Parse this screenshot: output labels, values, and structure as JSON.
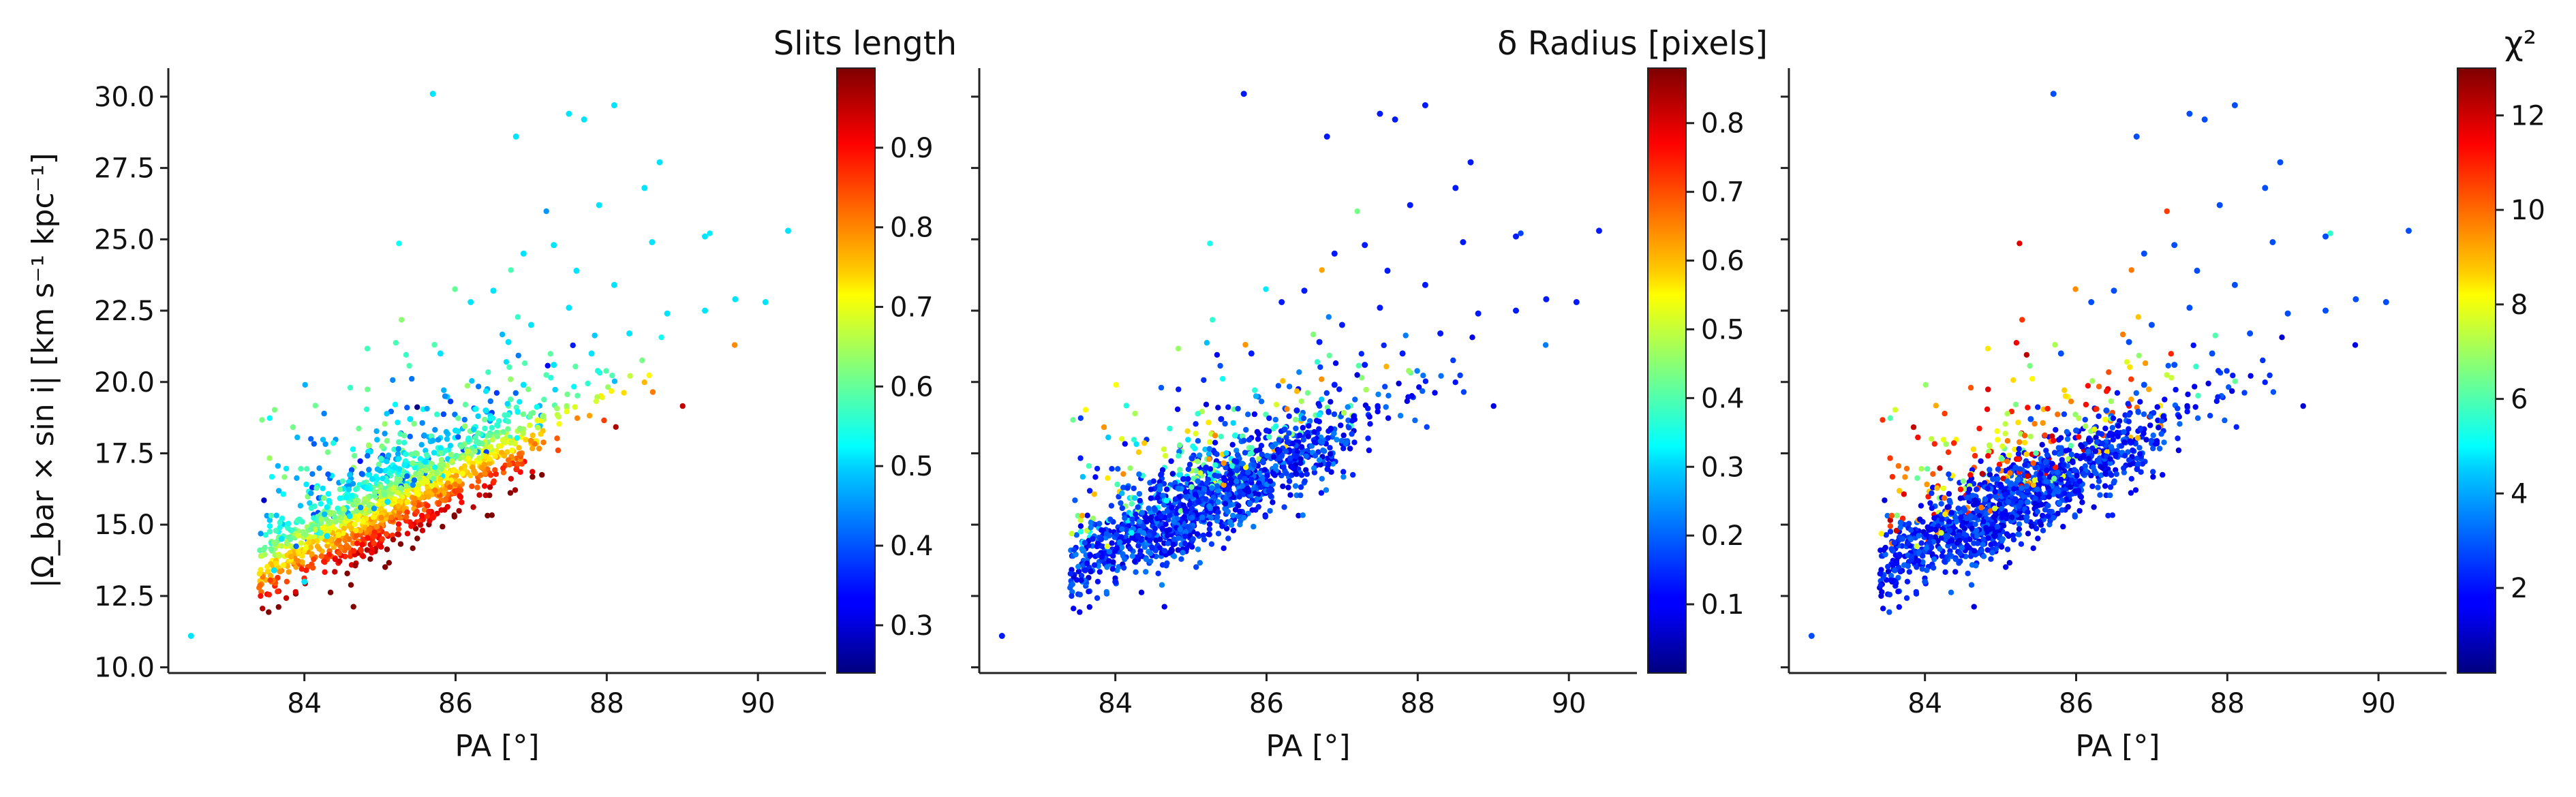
{
  "chart_data": [
    {
      "type": "scatter",
      "xlabel": "PA [°]",
      "ylabel": "|Ω_bar × sin i|   [km s⁻¹ kpc⁻¹]",
      "xlim": [
        82.2,
        90.9
      ],
      "ylim": [
        9.8,
        31.0
      ],
      "x_ticks": [
        "84",
        "86",
        "88",
        "90"
      ],
      "y_ticks": [
        "10.0",
        "12.5",
        "15.0",
        "17.5",
        "20.0",
        "22.5",
        "25.0",
        "27.5",
        "30.0"
      ],
      "colorbar": {
        "title": "Slits length",
        "range": [
          0.24,
          1.0
        ],
        "ticks": [
          "0.3",
          "0.4",
          "0.5",
          "0.6",
          "0.7",
          "0.8",
          "0.9"
        ],
        "colormap": "jet"
      },
      "color_trend": "color increases toward lower Ω at fixed PA (lower edge of the band ≈ 1.0, upper scatter ≈ 0.3–0.5)",
      "points": [
        [
          82.5,
          11.1
        ],
        [
          85.7,
          30.1
        ],
        [
          87.5,
          29.4
        ],
        [
          88.1,
          29.7
        ],
        [
          86.8,
          28.6
        ],
        [
          87.7,
          29.2
        ],
        [
          88.7,
          27.7
        ],
        [
          87.9,
          26.2
        ],
        [
          88.5,
          26.8
        ],
        [
          87.3,
          24.8
        ],
        [
          90.4,
          25.3
        ],
        [
          89.3,
          25.1
        ],
        [
          83.6,
          13.4
        ],
        [
          83.7,
          14.5
        ],
        [
          84.0,
          13.0
        ],
        [
          84.3,
          14.6
        ],
        [
          84.6,
          15.3
        ],
        [
          85.1,
          15.8
        ],
        [
          85.6,
          17.2
        ],
        [
          86.0,
          18.3
        ],
        [
          86.4,
          19.0
        ],
        [
          86.9,
          19.9
        ],
        [
          87.3,
          20.6
        ],
        [
          87.8,
          21.0
        ],
        [
          88.3,
          21.7
        ],
        [
          88.8,
          22.4
        ],
        [
          89.3,
          22.5
        ],
        [
          89.7,
          22.9
        ],
        [
          90.1,
          22.8
        ],
        [
          85.8,
          21.0
        ],
        [
          86.2,
          22.8
        ],
        [
          86.5,
          23.2
        ],
        [
          86.9,
          24.5
        ],
        [
          87.0,
          22.0
        ],
        [
          87.6,
          23.9
        ],
        [
          85.4,
          18.7
        ],
        [
          85.2,
          17.0
        ],
        [
          84.9,
          16.6
        ],
        [
          86.7,
          21.4
        ],
        [
          87.5,
          22.6
        ],
        [
          88.1,
          23.4
        ],
        [
          88.6,
          24.9
        ]
      ]
    },
    {
      "type": "scatter",
      "xlabel": "PA [°]",
      "xlim": [
        82.2,
        90.9
      ],
      "ylim": [
        9.8,
        31.0
      ],
      "x_ticks": [
        "84",
        "86",
        "88",
        "90"
      ],
      "colorbar": {
        "title": "δ Radius [pixels]",
        "range": [
          0.0,
          0.88
        ],
        "ticks": [
          "0.1",
          "0.2",
          "0.3",
          "0.4",
          "0.5",
          "0.6",
          "0.7",
          "0.8"
        ],
        "colormap": "jet"
      },
      "color_trend": "mostly low values (≈0.05–0.2) with scattered higher values in the upper part of the band",
      "points": [
        [
          82.5,
          11.1
        ],
        [
          85.7,
          30.1
        ],
        [
          87.5,
          29.4
        ],
        [
          88.1,
          29.7
        ],
        [
          86.8,
          28.6
        ],
        [
          87.7,
          29.2
        ],
        [
          88.7,
          27.7
        ],
        [
          87.9,
          26.2
        ],
        [
          88.5,
          26.8
        ],
        [
          87.3,
          24.8
        ],
        [
          90.4,
          25.3
        ],
        [
          89.3,
          25.1
        ],
        [
          83.6,
          13.4
        ],
        [
          83.7,
          14.5
        ],
        [
          84.0,
          13.0
        ],
        [
          84.3,
          14.6
        ],
        [
          84.6,
          15.3
        ],
        [
          85.1,
          15.8
        ],
        [
          85.6,
          17.2
        ],
        [
          86.0,
          18.3
        ],
        [
          86.4,
          19.0
        ],
        [
          86.9,
          19.9
        ],
        [
          87.3,
          20.6
        ],
        [
          87.8,
          21.0
        ],
        [
          88.3,
          21.7
        ],
        [
          88.8,
          22.4
        ],
        [
          89.3,
          22.5
        ],
        [
          89.7,
          22.9
        ],
        [
          90.1,
          22.8
        ],
        [
          85.8,
          21.0
        ],
        [
          86.2,
          22.8
        ],
        [
          86.5,
          23.2
        ],
        [
          86.9,
          24.5
        ],
        [
          87.0,
          22.0
        ],
        [
          87.6,
          23.9
        ],
        [
          85.4,
          18.7
        ],
        [
          85.2,
          17.0
        ],
        [
          84.9,
          16.6
        ],
        [
          86.7,
          21.4
        ],
        [
          87.5,
          22.6
        ],
        [
          88.1,
          23.4
        ],
        [
          88.6,
          24.9
        ]
      ]
    },
    {
      "type": "scatter",
      "xlabel": "PA [°]",
      "xlim": [
        82.2,
        90.9
      ],
      "ylim": [
        9.8,
        31.0
      ],
      "x_ticks": [
        "84",
        "86",
        "88",
        "90"
      ],
      "colorbar": {
        "title": "χ²",
        "range": [
          0.2,
          13.0
        ],
        "ticks": [
          "2",
          "4",
          "6",
          "8",
          "10",
          "12"
        ],
        "colormap": "jet"
      },
      "color_trend": "mostly low values (≈1–3) in the main band; high values (≈8–12) in the upper scatter at lower PA",
      "points": [
        [
          82.5,
          11.1
        ],
        [
          85.7,
          30.1
        ],
        [
          87.5,
          29.4
        ],
        [
          88.1,
          29.7
        ],
        [
          86.8,
          28.6
        ],
        [
          87.7,
          29.2
        ],
        [
          88.7,
          27.7
        ],
        [
          87.9,
          26.2
        ],
        [
          88.5,
          26.8
        ],
        [
          87.3,
          24.8
        ],
        [
          90.4,
          25.3
        ],
        [
          89.3,
          25.1
        ],
        [
          83.6,
          13.4
        ],
        [
          83.7,
          14.5
        ],
        [
          84.0,
          13.0
        ],
        [
          84.3,
          14.6
        ],
        [
          84.6,
          15.3
        ],
        [
          85.1,
          15.8
        ],
        [
          85.6,
          17.2
        ],
        [
          86.0,
          18.3
        ],
        [
          86.4,
          19.0
        ],
        [
          86.9,
          19.9
        ],
        [
          87.3,
          20.6
        ],
        [
          87.8,
          21.0
        ],
        [
          88.3,
          21.7
        ],
        [
          88.8,
          22.4
        ],
        [
          89.3,
          22.5
        ],
        [
          89.7,
          22.9
        ],
        [
          90.1,
          22.8
        ],
        [
          85.8,
          21.0
        ],
        [
          86.2,
          22.8
        ],
        [
          86.5,
          23.2
        ],
        [
          86.9,
          24.5
        ],
        [
          87.0,
          22.0
        ],
        [
          87.6,
          23.9
        ],
        [
          85.4,
          18.7
        ],
        [
          85.2,
          17.0
        ],
        [
          84.9,
          16.6
        ],
        [
          86.7,
          21.4
        ],
        [
          87.5,
          22.6
        ],
        [
          88.1,
          23.4
        ],
        [
          88.6,
          24.9
        ]
      ]
    }
  ]
}
